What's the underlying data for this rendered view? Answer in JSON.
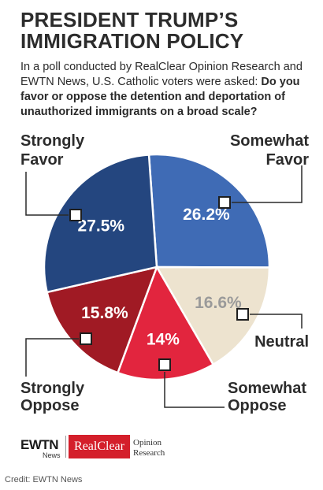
{
  "title": "PRESIDENT TRUMP’S IMMIGRATION POLICY",
  "intro": {
    "text": "In a poll conducted by RealClear Opinion Research and EWTN News, U.S. Catholic voters were asked: ",
    "question": "Do you favor or oppose the detention and deportation of unauthorized immigrants on a broad scale?"
  },
  "chart_data": {
    "type": "pie",
    "slices": [
      {
        "label_line1": "Somewhat",
        "label_line2": "Favor",
        "value": 26.2,
        "value_label": "26.2%",
        "color": "#3f6bb5",
        "text_color": "#ffffff"
      },
      {
        "label_line1": "",
        "label_line2": "Neutral",
        "value": 16.6,
        "value_label": "16.6%",
        "color": "#ede3cf",
        "text_color": "#9a9a9a"
      },
      {
        "label_line1": "Somewhat",
        "label_line2": "Oppose",
        "value": 14.0,
        "value_label": "14%",
        "color": "#e2253e",
        "text_color": "#ffffff"
      },
      {
        "label_line1": "Strongly",
        "label_line2": "Oppose",
        "value": 15.8,
        "value_label": "15.8%",
        "color": "#a01a24",
        "text_color": "#ffffff"
      },
      {
        "label_line1": "Strongly",
        "label_line2": "Favor",
        "value": 27.5,
        "value_label": "27.5%",
        "color": "#24467f",
        "text_color": "#ffffff"
      }
    ]
  },
  "logos": {
    "ewtn": "EWTN",
    "ewtn_sub": "News",
    "realclear": "RealClear",
    "opinion_line1": "Opinion",
    "opinion_line2": "Research"
  },
  "credit": "Credit: EWTN News"
}
